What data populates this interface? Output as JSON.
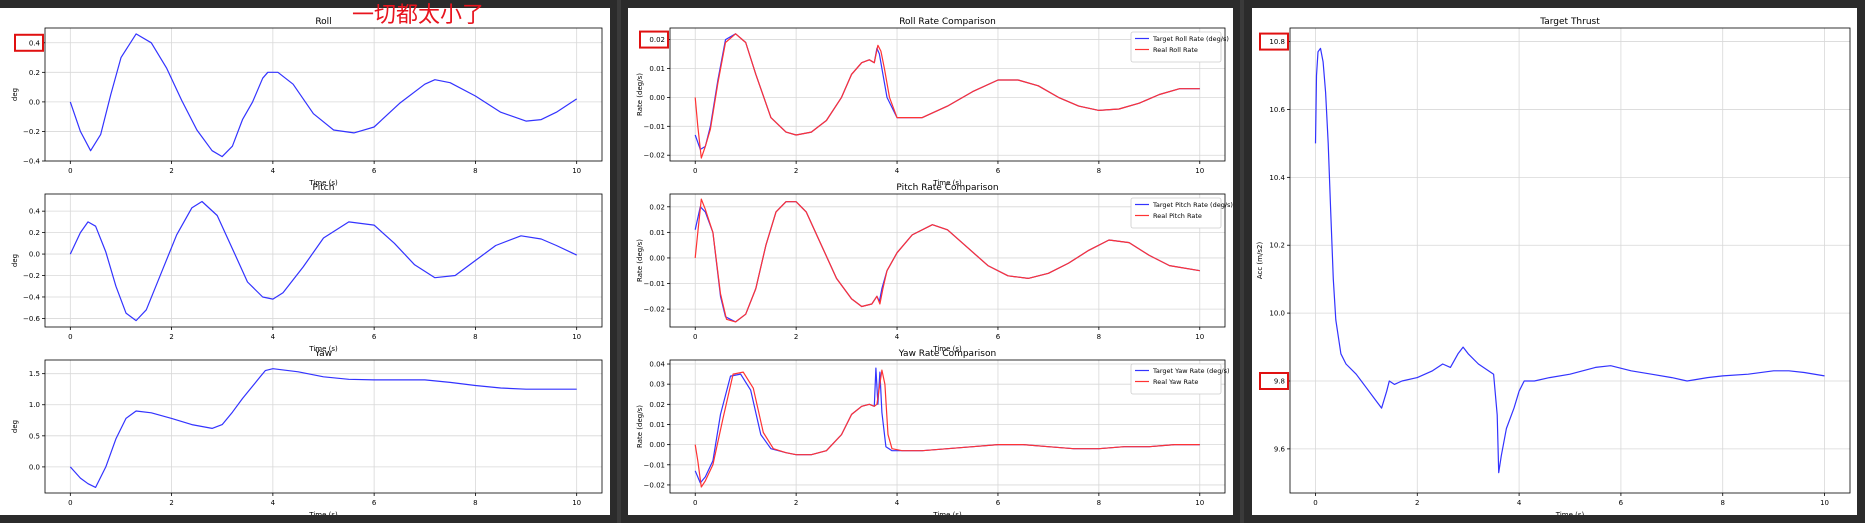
{
  "annotation": {
    "text": "一切都太小了"
  },
  "colors": {
    "target": "#3333ff",
    "real": "#ff3333",
    "grid": "#d8d8d8"
  },
  "chart_data": [
    {
      "id": "roll",
      "type": "line",
      "title": "Roll",
      "xlabel": "Time (s)",
      "ylabel": "deg",
      "xlim": [
        -0.5,
        10.5
      ],
      "ylim": [
        -0.4,
        0.5
      ],
      "xticks": [
        0,
        2,
        4,
        6,
        8,
        10
      ],
      "yticks": [
        -0.4,
        -0.2,
        0.0,
        0.2,
        0.4
      ],
      "ytick_labels": [
        "−0.4",
        "−0.2",
        "0.0",
        "0.2",
        "0.4"
      ],
      "highlight_ticks": [
        0.4
      ],
      "series": [
        {
          "color_key": "target",
          "x": [
            0,
            0.2,
            0.4,
            0.6,
            0.8,
            1.0,
            1.3,
            1.6,
            1.9,
            2.2,
            2.5,
            2.8,
            3.0,
            3.2,
            3.4,
            3.6,
            3.8,
            3.9,
            4.1,
            4.4,
            4.8,
            5.2,
            5.6,
            6.0,
            6.5,
            7.0,
            7.2,
            7.5,
            8.0,
            8.5,
            9.0,
            9.3,
            9.6,
            10.0
          ],
          "y": [
            0.0,
            -0.2,
            -0.33,
            -0.22,
            0.05,
            0.3,
            0.46,
            0.4,
            0.23,
            0.01,
            -0.19,
            -0.33,
            -0.37,
            -0.3,
            -0.12,
            0.0,
            0.16,
            0.2,
            0.2,
            0.12,
            -0.08,
            -0.19,
            -0.21,
            -0.17,
            -0.01,
            0.12,
            0.15,
            0.13,
            0.04,
            -0.07,
            -0.13,
            -0.12,
            -0.07,
            0.02
          ]
        }
      ]
    },
    {
      "id": "pitch",
      "type": "line",
      "title": "Pitch",
      "xlabel": "Time (s)",
      "ylabel": "deg",
      "xlim": [
        -0.5,
        10.5
      ],
      "ylim": [
        -0.68,
        0.56
      ],
      "xticks": [
        0,
        2,
        4,
        6,
        8,
        10
      ],
      "yticks": [
        -0.6,
        -0.4,
        -0.2,
        0.0,
        0.2,
        0.4
      ],
      "ytick_labels": [
        "−0.6",
        "−0.4",
        "−0.2",
        "0.0",
        "0.2",
        "0.4"
      ],
      "highlight_ticks": [],
      "series": [
        {
          "color_key": "target",
          "x": [
            0,
            0.2,
            0.35,
            0.5,
            0.7,
            0.9,
            1.1,
            1.3,
            1.5,
            1.8,
            2.1,
            2.4,
            2.6,
            2.9,
            3.2,
            3.5,
            3.8,
            4.0,
            4.2,
            4.6,
            5.0,
            5.5,
            6.0,
            6.4,
            6.8,
            7.2,
            7.6,
            8.0,
            8.4,
            8.9,
            9.3,
            9.6,
            10.0
          ],
          "y": [
            0.0,
            0.2,
            0.3,
            0.26,
            0.02,
            -0.3,
            -0.55,
            -0.62,
            -0.52,
            -0.17,
            0.18,
            0.43,
            0.49,
            0.36,
            0.05,
            -0.26,
            -0.4,
            -0.42,
            -0.36,
            -0.12,
            0.15,
            0.3,
            0.27,
            0.1,
            -0.1,
            -0.22,
            -0.2,
            -0.06,
            0.08,
            0.17,
            0.14,
            0.08,
            -0.01
          ]
        }
      ]
    },
    {
      "id": "yaw",
      "type": "line",
      "title": "Yaw",
      "xlabel": "Time (s)",
      "ylabel": "deg",
      "xlim": [
        -0.5,
        10.5
      ],
      "ylim": [
        -0.42,
        1.72
      ],
      "xticks": [
        0,
        2,
        4,
        6,
        8,
        10
      ],
      "yticks": [
        0.0,
        0.5,
        1.0,
        1.5
      ],
      "ytick_labels": [
        "0.0",
        "0.5",
        "1.0",
        "1.5"
      ],
      "highlight_ticks": [],
      "series": [
        {
          "color_key": "target",
          "x": [
            0,
            0.2,
            0.35,
            0.5,
            0.7,
            0.9,
            1.1,
            1.3,
            1.6,
            2.0,
            2.4,
            2.8,
            3.0,
            3.2,
            3.4,
            3.6,
            3.75,
            3.85,
            4.0,
            4.5,
            5.0,
            5.5,
            6.0,
            7.0,
            7.5,
            8.0,
            8.5,
            9.0,
            9.5,
            10.0
          ],
          "y": [
            0.0,
            -0.18,
            -0.27,
            -0.33,
            0.0,
            0.45,
            0.78,
            0.9,
            0.87,
            0.78,
            0.68,
            0.62,
            0.68,
            0.88,
            1.1,
            1.3,
            1.45,
            1.55,
            1.58,
            1.53,
            1.45,
            1.41,
            1.4,
            1.4,
            1.36,
            1.31,
            1.27,
            1.25,
            1.25,
            1.25
          ]
        }
      ]
    },
    {
      "id": "roll-rate",
      "type": "line",
      "title": "Roll Rate Comparison",
      "xlabel": "Time (s)",
      "ylabel": "Rate (deg/s)",
      "xlim": [
        -0.5,
        10.5
      ],
      "ylim": [
        -0.022,
        0.024
      ],
      "xticks": [
        0,
        2,
        4,
        6,
        8,
        10
      ],
      "yticks": [
        -0.02,
        -0.01,
        0.0,
        0.01,
        0.02
      ],
      "ytick_labels": [
        "−0.02",
        "−0.01",
        "0.00",
        "0.01",
        "0.02"
      ],
      "highlight_ticks": [
        0.02
      ],
      "legend_position": "top-right",
      "series": [
        {
          "name": "Target Roll Rate (deg/s)",
          "color_key": "target",
          "x": [
            0,
            0.1,
            0.2,
            0.3,
            0.45,
            0.6,
            0.8,
            1.0,
            1.2,
            1.5,
            1.8,
            2.0,
            2.3,
            2.6,
            2.9,
            3.1,
            3.3,
            3.45,
            3.55,
            3.6,
            3.65,
            3.7,
            3.8,
            4.0,
            4.5,
            5.0,
            5.5,
            6.0,
            6.4,
            6.8,
            7.2,
            7.6,
            8.0,
            8.4,
            8.8,
            9.2,
            9.6,
            10.0
          ],
          "y": [
            -0.013,
            -0.018,
            -0.017,
            -0.01,
            0.006,
            0.02,
            0.022,
            0.019,
            0.008,
            -0.007,
            -0.012,
            -0.013,
            -0.012,
            -0.008,
            0.0,
            0.008,
            0.012,
            0.013,
            0.012,
            0.017,
            0.015,
            0.01,
            0.0,
            -0.007,
            -0.007,
            -0.003,
            0.002,
            0.006,
            0.006,
            0.004,
            0.0,
            -0.003,
            -0.0045,
            -0.004,
            -0.002,
            0.001,
            0.003,
            0.003
          ]
        },
        {
          "name": "Real Roll Rate",
          "color_key": "real",
          "x": [
            0,
            0.05,
            0.12,
            0.2,
            0.3,
            0.45,
            0.6,
            0.8,
            1.0,
            1.2,
            1.5,
            1.8,
            2.0,
            2.3,
            2.6,
            2.9,
            3.1,
            3.3,
            3.45,
            3.55,
            3.62,
            3.68,
            3.75,
            3.85,
            4.0,
            4.5,
            5.0,
            5.5,
            6.0,
            6.4,
            6.8,
            7.2,
            7.6,
            8.0,
            8.4,
            8.8,
            9.2,
            9.6,
            10.0
          ],
          "y": [
            0.0,
            -0.01,
            -0.021,
            -0.017,
            -0.011,
            0.005,
            0.019,
            0.022,
            0.019,
            0.008,
            -0.007,
            -0.012,
            -0.013,
            -0.012,
            -0.008,
            0.0,
            0.008,
            0.012,
            0.013,
            0.012,
            0.018,
            0.016,
            0.01,
            0.0,
            -0.007,
            -0.007,
            -0.003,
            0.002,
            0.006,
            0.006,
            0.004,
            0.0,
            -0.003,
            -0.0045,
            -0.004,
            -0.002,
            0.001,
            0.003,
            0.003
          ]
        }
      ]
    },
    {
      "id": "pitch-rate",
      "type": "line",
      "title": "Pitch Rate Comparison",
      "xlabel": "Time (s)",
      "ylabel": "Rate (deg/s)",
      "xlim": [
        -0.5,
        10.5
      ],
      "ylim": [
        -0.027,
        0.025
      ],
      "xticks": [
        0,
        2,
        4,
        6,
        8,
        10
      ],
      "yticks": [
        -0.02,
        -0.01,
        0.0,
        0.01,
        0.02
      ],
      "ytick_labels": [
        "−0.02",
        "−0.01",
        "0.00",
        "0.01",
        "0.02"
      ],
      "highlight_ticks": [],
      "legend_position": "top-right",
      "series": [
        {
          "name": "Target Pitch Rate (deg/s)",
          "color_key": "target",
          "x": [
            0,
            0.1,
            0.2,
            0.35,
            0.5,
            0.6,
            0.8,
            1.0,
            1.2,
            1.4,
            1.6,
            1.8,
            2.0,
            2.2,
            2.5,
            2.8,
            3.1,
            3.3,
            3.5,
            3.6,
            3.65,
            3.7,
            3.8,
            4.0,
            4.3,
            4.7,
            5.0,
            5.4,
            5.8,
            6.2,
            6.6,
            7.0,
            7.4,
            7.8,
            8.2,
            8.6,
            9.0,
            9.4,
            10.0
          ],
          "y": [
            0.011,
            0.02,
            0.018,
            0.01,
            -0.015,
            -0.023,
            -0.025,
            -0.022,
            -0.012,
            0.005,
            0.018,
            0.022,
            0.022,
            0.018,
            0.005,
            -0.008,
            -0.016,
            -0.019,
            -0.018,
            -0.015,
            -0.017,
            -0.012,
            -0.005,
            0.002,
            0.009,
            0.013,
            0.011,
            0.004,
            -0.003,
            -0.007,
            -0.008,
            -0.006,
            -0.002,
            0.003,
            0.007,
            0.006,
            0.001,
            -0.003,
            -0.005
          ]
        },
        {
          "name": "Real Pitch Rate",
          "color_key": "real",
          "x": [
            0,
            0.05,
            0.12,
            0.2,
            0.35,
            0.5,
            0.62,
            0.8,
            1.0,
            1.2,
            1.4,
            1.6,
            1.8,
            2.0,
            2.2,
            2.5,
            2.8,
            3.1,
            3.3,
            3.5,
            3.6,
            3.66,
            3.72,
            3.8,
            4.0,
            4.3,
            4.7,
            5.0,
            5.4,
            5.8,
            6.2,
            6.6,
            7.0,
            7.4,
            7.8,
            8.2,
            8.6,
            9.0,
            9.4,
            10.0
          ],
          "y": [
            0.0,
            0.01,
            0.023,
            0.019,
            0.01,
            -0.014,
            -0.024,
            -0.025,
            -0.022,
            -0.012,
            0.005,
            0.018,
            0.022,
            0.022,
            0.018,
            0.005,
            -0.008,
            -0.016,
            -0.019,
            -0.018,
            -0.015,
            -0.018,
            -0.012,
            -0.005,
            0.002,
            0.009,
            0.013,
            0.011,
            0.004,
            -0.003,
            -0.007,
            -0.008,
            -0.006,
            -0.002,
            0.003,
            0.007,
            0.006,
            0.001,
            -0.003,
            -0.005
          ]
        }
      ]
    },
    {
      "id": "yaw-rate",
      "type": "line",
      "title": "Yaw Rate Comparison",
      "xlabel": "Time (s)",
      "ylabel": "Rate (deg/s)",
      "xlim": [
        -0.5,
        10.5
      ],
      "ylim": [
        -0.024,
        0.042
      ],
      "xticks": [
        0,
        2,
        4,
        6,
        8,
        10
      ],
      "yticks": [
        -0.02,
        -0.01,
        0.0,
        0.01,
        0.02,
        0.03,
        0.04
      ],
      "ytick_labels": [
        "−0.02",
        "−0.01",
        "0.00",
        "0.01",
        "0.02",
        "0.03",
        "0.04"
      ],
      "highlight_ticks": [],
      "legend_position": "top-right",
      "series": [
        {
          "name": "Target Yaw Rate (deg/s)",
          "color_key": "target",
          "x": [
            0,
            0.1,
            0.2,
            0.35,
            0.5,
            0.7,
            0.9,
            1.1,
            1.3,
            1.5,
            1.8,
            2.0,
            2.3,
            2.6,
            2.9,
            3.1,
            3.3,
            3.45,
            3.55,
            3.58,
            3.62,
            3.66,
            3.7,
            3.78,
            3.9,
            4.1,
            4.5,
            5.0,
            5.5,
            6.0,
            6.5,
            7.0,
            7.5,
            8.0,
            8.5,
            9.0,
            9.5,
            10.0
          ],
          "y": [
            -0.013,
            -0.019,
            -0.016,
            -0.008,
            0.015,
            0.034,
            0.035,
            0.027,
            0.005,
            -0.002,
            -0.004,
            -0.005,
            -0.005,
            -0.003,
            0.005,
            0.015,
            0.019,
            0.02,
            0.019,
            0.038,
            0.02,
            0.036,
            0.016,
            -0.001,
            -0.003,
            -0.003,
            -0.003,
            -0.002,
            -0.001,
            0.0,
            0.0,
            -0.001,
            -0.002,
            -0.002,
            -0.001,
            -0.001,
            0.0,
            0.0
          ]
        },
        {
          "name": "Real Yaw Rate",
          "color_key": "real",
          "x": [
            0,
            0.05,
            0.12,
            0.2,
            0.35,
            0.55,
            0.75,
            0.95,
            1.15,
            1.35,
            1.55,
            1.8,
            2.0,
            2.3,
            2.6,
            2.9,
            3.1,
            3.3,
            3.45,
            3.55,
            3.6,
            3.7,
            3.76,
            3.82,
            3.9,
            4.1,
            4.5,
            5.0,
            5.5,
            6.0,
            6.5,
            7.0,
            7.5,
            8.0,
            8.5,
            9.0,
            9.5,
            10.0
          ],
          "y": [
            0.0,
            -0.008,
            -0.021,
            -0.018,
            -0.01,
            0.013,
            0.035,
            0.036,
            0.028,
            0.006,
            -0.002,
            -0.004,
            -0.005,
            -0.005,
            -0.003,
            0.005,
            0.015,
            0.019,
            0.02,
            0.019,
            0.02,
            0.037,
            0.03,
            0.005,
            -0.002,
            -0.003,
            -0.003,
            -0.002,
            -0.001,
            0.0,
            0.0,
            -0.001,
            -0.002,
            -0.002,
            -0.001,
            -0.001,
            0.0,
            0.0
          ]
        }
      ]
    },
    {
      "id": "thrust",
      "type": "line",
      "title": "Target Thrust",
      "xlabel": "Time (s)",
      "ylabel": "Acc (m/s2)",
      "xlim": [
        -0.5,
        10.5
      ],
      "ylim": [
        9.47,
        10.84
      ],
      "xticks": [
        0,
        2,
        4,
        6,
        8,
        10
      ],
      "yticks": [
        9.6,
        9.8,
        10.0,
        10.2,
        10.4,
        10.6,
        10.8
      ],
      "ytick_labels": [
        "9.6",
        "9.8",
        "10.0",
        "10.2",
        "10.4",
        "10.6",
        "10.8"
      ],
      "highlight_ticks": [
        10.8,
        9.8
      ],
      "series": [
        {
          "color_key": "target",
          "x": [
            0,
            0.02,
            0.05,
            0.1,
            0.15,
            0.2,
            0.25,
            0.3,
            0.35,
            0.4,
            0.5,
            0.6,
            0.8,
            1.0,
            1.2,
            1.3,
            1.4,
            1.45,
            1.55,
            1.7,
            2.0,
            2.3,
            2.5,
            2.65,
            2.8,
            2.9,
            3.0,
            3.2,
            3.5,
            3.57,
            3.6,
            3.65,
            3.75,
            3.9,
            4.0,
            4.1,
            4.3,
            4.6,
            5.0,
            5.5,
            5.8,
            6.2,
            6.6,
            7.0,
            7.3,
            7.7,
            8.0,
            8.5,
            9.0,
            9.3,
            9.6,
            10.0
          ],
          "y": [
            10.5,
            10.7,
            10.77,
            10.78,
            10.74,
            10.65,
            10.5,
            10.3,
            10.1,
            9.98,
            9.88,
            9.85,
            9.82,
            9.78,
            9.74,
            9.72,
            9.77,
            9.8,
            9.79,
            9.8,
            9.81,
            9.83,
            9.85,
            9.84,
            9.88,
            9.9,
            9.88,
            9.85,
            9.82,
            9.7,
            9.53,
            9.58,
            9.66,
            9.72,
            9.77,
            9.8,
            9.8,
            9.81,
            9.82,
            9.84,
            9.845,
            9.83,
            9.82,
            9.81,
            9.8,
            9.81,
            9.815,
            9.82,
            9.83,
            9.83,
            9.825,
            9.815
          ]
        }
      ]
    }
  ]
}
